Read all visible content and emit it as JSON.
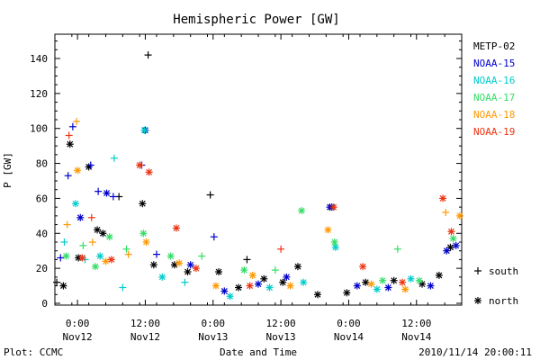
{
  "chart_data": {
    "type": "scatter",
    "title": "Hemispheric Power [GW]",
    "ylabel": "P [GW]",
    "xlabel": "Date and Time",
    "ylim": [
      0,
      150
    ],
    "xlim": [
      "2010-11-11T20:00",
      "2010-11-14T20:00"
    ],
    "y_ticks": [
      0,
      20,
      40,
      60,
      80,
      100,
      120,
      140
    ],
    "x_ticks": [
      {
        "at": "2010-11-12T00:00",
        "time": "0:00",
        "day": "Nov12"
      },
      {
        "at": "2010-11-12T12:00",
        "time": "12:00",
        "day": "Nov12"
      },
      {
        "at": "2010-11-13T00:00",
        "time": "0:00",
        "day": "Nov13"
      },
      {
        "at": "2010-11-13T12:00",
        "time": "12:00",
        "day": "Nov13"
      },
      {
        "at": "2010-11-14T00:00",
        "time": "0:00",
        "day": "Nov14"
      },
      {
        "at": "2010-11-14T12:00",
        "time": "12:00",
        "day": "Nov14"
      }
    ],
    "legend_position": "right",
    "marker_legend": [
      {
        "symbol": "+",
        "label": "south"
      },
      {
        "symbol": "*",
        "label": "north"
      }
    ],
    "series": [
      {
        "name": "METP-02",
        "color": "#000000",
        "points": [
          {
            "x": "2010-11-11T20:20",
            "y": 12,
            "m": "+"
          },
          {
            "x": "2010-11-11T21:30",
            "y": 10,
            "m": "*"
          },
          {
            "x": "2010-11-11T22:40",
            "y": 91,
            "m": "*"
          },
          {
            "x": "2010-11-12T00:10",
            "y": 26,
            "m": "*"
          },
          {
            "x": "2010-11-12T02:00",
            "y": 78,
            "m": "*"
          },
          {
            "x": "2010-11-12T03:30",
            "y": 42,
            "m": "*"
          },
          {
            "x": "2010-11-12T04:30",
            "y": 40,
            "m": "*"
          },
          {
            "x": "2010-11-12T07:20",
            "y": 61,
            "m": "+"
          },
          {
            "x": "2010-11-12T11:30",
            "y": 57,
            "m": "*"
          },
          {
            "x": "2010-11-12T12:30",
            "y": 142,
            "m": "+"
          },
          {
            "x": "2010-11-12T13:30",
            "y": 22,
            "m": "*"
          },
          {
            "x": "2010-11-12T17:10",
            "y": 22,
            "m": "*"
          },
          {
            "x": "2010-11-12T19:30",
            "y": 18,
            "m": "*"
          },
          {
            "x": "2010-11-12T23:30",
            "y": 62,
            "m": "+"
          },
          {
            "x": "2010-11-13T01:00",
            "y": 18,
            "m": "*"
          },
          {
            "x": "2010-11-13T04:30",
            "y": 9,
            "m": "*"
          },
          {
            "x": "2010-11-13T06:00",
            "y": 25,
            "m": "+"
          },
          {
            "x": "2010-11-13T09:00",
            "y": 14,
            "m": "*"
          },
          {
            "x": "2010-11-13T12:20",
            "y": 12,
            "m": "*"
          },
          {
            "x": "2010-11-13T15:00",
            "y": 21,
            "m": "*"
          },
          {
            "x": "2010-11-13T18:30",
            "y": 5,
            "m": "*"
          },
          {
            "x": "2010-11-13T21:00",
            "y": 55,
            "m": "*"
          },
          {
            "x": "2010-11-13T23:40",
            "y": 6,
            "m": "*"
          },
          {
            "x": "2010-11-14T03:00",
            "y": 12,
            "m": "*"
          },
          {
            "x": "2010-11-14T08:00",
            "y": 13,
            "m": "*"
          },
          {
            "x": "2010-11-14T13:00",
            "y": 11,
            "m": "*"
          },
          {
            "x": "2010-11-14T16:00",
            "y": 16,
            "m": "*"
          },
          {
            "x": "2010-11-14T18:00",
            "y": 32,
            "m": "*"
          }
        ]
      },
      {
        "name": "NOAA-15",
        "color": "#0000cc",
        "points": [
          {
            "x": "2010-11-11T21:00",
            "y": 26,
            "m": "+"
          },
          {
            "x": "2010-11-11T22:20",
            "y": 73,
            "m": "+"
          },
          {
            "x": "2010-11-11T23:10",
            "y": 101,
            "m": "+"
          },
          {
            "x": "2010-11-12T00:30",
            "y": 49,
            "m": "*"
          },
          {
            "x": "2010-11-12T02:20",
            "y": 79,
            "m": "+"
          },
          {
            "x": "2010-11-12T03:40",
            "y": 64,
            "m": "+"
          },
          {
            "x": "2010-11-12T05:10",
            "y": 63,
            "m": "*"
          },
          {
            "x": "2010-11-12T06:20",
            "y": 61,
            "m": "+"
          },
          {
            "x": "2010-11-12T11:20",
            "y": 79,
            "m": "+"
          },
          {
            "x": "2010-11-12T12:00",
            "y": 99,
            "m": "*"
          },
          {
            "x": "2010-11-12T14:00",
            "y": 28,
            "m": "+"
          },
          {
            "x": "2010-11-12T20:00",
            "y": 22,
            "m": "*"
          },
          {
            "x": "2010-11-13T00:10",
            "y": 38,
            "m": "+"
          },
          {
            "x": "2010-11-13T02:00",
            "y": 7,
            "m": "*"
          },
          {
            "x": "2010-11-13T08:00",
            "y": 11,
            "m": "*"
          },
          {
            "x": "2010-11-13T13:00",
            "y": 15,
            "m": "*"
          },
          {
            "x": "2010-11-13T20:40",
            "y": 55,
            "m": "*"
          },
          {
            "x": "2010-11-14T01:30",
            "y": 10,
            "m": "*"
          },
          {
            "x": "2010-11-14T07:00",
            "y": 9,
            "m": "*"
          },
          {
            "x": "2010-11-14T14:30",
            "y": 10,
            "m": "*"
          },
          {
            "x": "2010-11-14T17:20",
            "y": 30,
            "m": "*"
          },
          {
            "x": "2010-11-14T19:00",
            "y": 33,
            "m": "*"
          }
        ]
      },
      {
        "name": "NOAA-16",
        "color": "#00cccc",
        "points": [
          {
            "x": "2010-11-11T21:40",
            "y": 35,
            "m": "+"
          },
          {
            "x": "2010-11-11T23:40",
            "y": 57,
            "m": "*"
          },
          {
            "x": "2010-11-12T01:20",
            "y": 25,
            "m": "+"
          },
          {
            "x": "2010-11-12T04:00",
            "y": 27,
            "m": "*"
          },
          {
            "x": "2010-11-12T06:30",
            "y": 83,
            "m": "+"
          },
          {
            "x": "2010-11-12T08:00",
            "y": 9,
            "m": "+"
          },
          {
            "x": "2010-11-12T11:50",
            "y": 99,
            "m": "*"
          },
          {
            "x": "2010-11-12T15:00",
            "y": 15,
            "m": "*"
          },
          {
            "x": "2010-11-12T19:00",
            "y": 12,
            "m": "+"
          },
          {
            "x": "2010-11-13T03:00",
            "y": 4,
            "m": "*"
          },
          {
            "x": "2010-11-13T10:00",
            "y": 9,
            "m": "*"
          },
          {
            "x": "2010-11-13T16:00",
            "y": 12,
            "m": "*"
          },
          {
            "x": "2010-11-13T21:40",
            "y": 32,
            "m": "*"
          },
          {
            "x": "2010-11-14T05:00",
            "y": 8,
            "m": "*"
          },
          {
            "x": "2010-11-14T11:00",
            "y": 14,
            "m": "*"
          }
        ]
      },
      {
        "name": "NOAA-17",
        "color": "#33dd66",
        "points": [
          {
            "x": "2010-11-11T22:00",
            "y": 27,
            "m": "*"
          },
          {
            "x": "2010-11-12T01:00",
            "y": 33,
            "m": "+"
          },
          {
            "x": "2010-11-12T03:10",
            "y": 21,
            "m": "*"
          },
          {
            "x": "2010-11-12T05:40",
            "y": 38,
            "m": "*"
          },
          {
            "x": "2010-11-12T08:40",
            "y": 31,
            "m": "+"
          },
          {
            "x": "2010-11-12T11:40",
            "y": 40,
            "m": "*"
          },
          {
            "x": "2010-11-12T16:30",
            "y": 27,
            "m": "*"
          },
          {
            "x": "2010-11-12T22:00",
            "y": 27,
            "m": "+"
          },
          {
            "x": "2010-11-13T05:30",
            "y": 19,
            "m": "*"
          },
          {
            "x": "2010-11-13T11:00",
            "y": 19,
            "m": "+"
          },
          {
            "x": "2010-11-13T15:40",
            "y": 53,
            "m": "*"
          },
          {
            "x": "2010-11-13T21:30",
            "y": 35,
            "m": "*"
          },
          {
            "x": "2010-11-14T06:00",
            "y": 13,
            "m": "*"
          },
          {
            "x": "2010-11-14T08:40",
            "y": 31,
            "m": "+"
          },
          {
            "x": "2010-11-14T12:30",
            "y": 13,
            "m": "*"
          },
          {
            "x": "2010-11-14T18:30",
            "y": 37,
            "m": "*"
          }
        ]
      },
      {
        "name": "NOAA-18",
        "color": "#ff9900",
        "points": [
          {
            "x": "2010-11-11T22:10",
            "y": 45,
            "m": "+"
          },
          {
            "x": "2010-11-11T23:50",
            "y": 104,
            "m": "+"
          },
          {
            "x": "2010-11-12T00:00",
            "y": 76,
            "m": "*"
          },
          {
            "x": "2010-11-12T02:40",
            "y": 35,
            "m": "+"
          },
          {
            "x": "2010-11-12T05:00",
            "y": 24,
            "m": "*"
          },
          {
            "x": "2010-11-12T09:00",
            "y": 28,
            "m": "+"
          },
          {
            "x": "2010-11-12T12:10",
            "y": 35,
            "m": "*"
          },
          {
            "x": "2010-11-12T18:00",
            "y": 23,
            "m": "*"
          },
          {
            "x": "2010-11-13T00:30",
            "y": 10,
            "m": "*"
          },
          {
            "x": "2010-11-13T07:00",
            "y": 16,
            "m": "*"
          },
          {
            "x": "2010-11-13T13:40",
            "y": 10,
            "m": "*"
          },
          {
            "x": "2010-11-13T20:20",
            "y": 42,
            "m": "*"
          },
          {
            "x": "2010-11-14T04:00",
            "y": 11,
            "m": "*"
          },
          {
            "x": "2010-11-14T10:00",
            "y": 8,
            "m": "*"
          },
          {
            "x": "2010-11-14T17:10",
            "y": 52,
            "m": "+"
          },
          {
            "x": "2010-11-14T19:40",
            "y": 50,
            "m": "*"
          }
        ]
      },
      {
        "name": "NOAA-19",
        "color": "#ee3311",
        "points": [
          {
            "x": "2010-11-11T22:30",
            "y": 96,
            "m": "+"
          },
          {
            "x": "2010-11-12T00:50",
            "y": 26,
            "m": "*"
          },
          {
            "x": "2010-11-12T02:30",
            "y": 49,
            "m": "+"
          },
          {
            "x": "2010-11-12T06:00",
            "y": 25,
            "m": "*"
          },
          {
            "x": "2010-11-12T11:00",
            "y": 79,
            "m": "*"
          },
          {
            "x": "2010-11-12T12:40",
            "y": 75,
            "m": "*"
          },
          {
            "x": "2010-11-12T17:30",
            "y": 43,
            "m": "*"
          },
          {
            "x": "2010-11-12T21:00",
            "y": 20,
            "m": "*"
          },
          {
            "x": "2010-11-13T06:30",
            "y": 10,
            "m": "*"
          },
          {
            "x": "2010-11-13T12:00",
            "y": 31,
            "m": "+"
          },
          {
            "x": "2010-11-13T21:20",
            "y": 55,
            "m": "*"
          },
          {
            "x": "2010-11-14T02:30",
            "y": 21,
            "m": "*"
          },
          {
            "x": "2010-11-14T09:30",
            "y": 12,
            "m": "*"
          },
          {
            "x": "2010-11-14T16:40",
            "y": 60,
            "m": "*"
          },
          {
            "x": "2010-11-14T18:10",
            "y": 41,
            "m": "*"
          }
        ]
      }
    ]
  },
  "footer": {
    "plot_source": "Plot: CCMC",
    "timestamp": "2010/11/14 20:00:11"
  }
}
